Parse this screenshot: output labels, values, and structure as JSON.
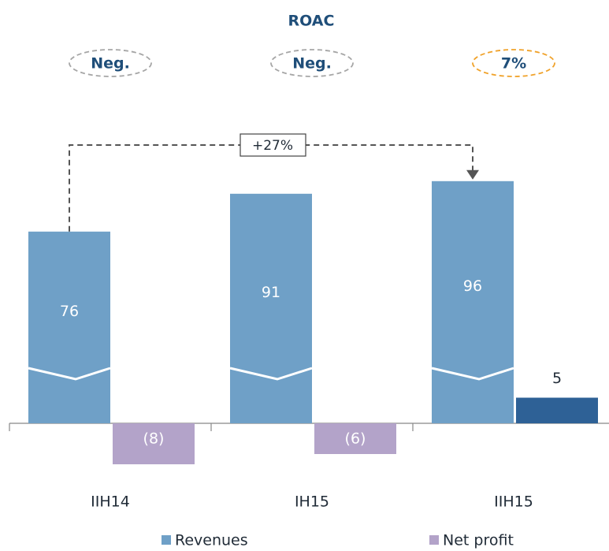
{
  "chart_data": {
    "type": "bar",
    "categories": [
      "IIH14",
      "IH15",
      "IIH15"
    ],
    "series": [
      {
        "name": "Revenues",
        "color": "#6fa0c7",
        "values": [
          76,
          91,
          96
        ],
        "broken": true
      },
      {
        "name": "Net profit",
        "color": "#b3a3c9",
        "colors": [
          "#b3a3c9",
          "#b3a3c9",
          "#2e6196"
        ],
        "values": [
          -8,
          -6,
          5
        ],
        "value_labels": [
          "(8)",
          "(6)",
          "5"
        ]
      }
    ],
    "roac": {
      "title": "ROAC",
      "labels": [
        "Neg.",
        "Neg.",
        "7%"
      ],
      "colors": [
        "#a6a6a6",
        "#a6a6a6",
        "#f0a22a"
      ]
    },
    "growth": {
      "label": "+27%",
      "from": 0,
      "to": 2
    }
  }
}
